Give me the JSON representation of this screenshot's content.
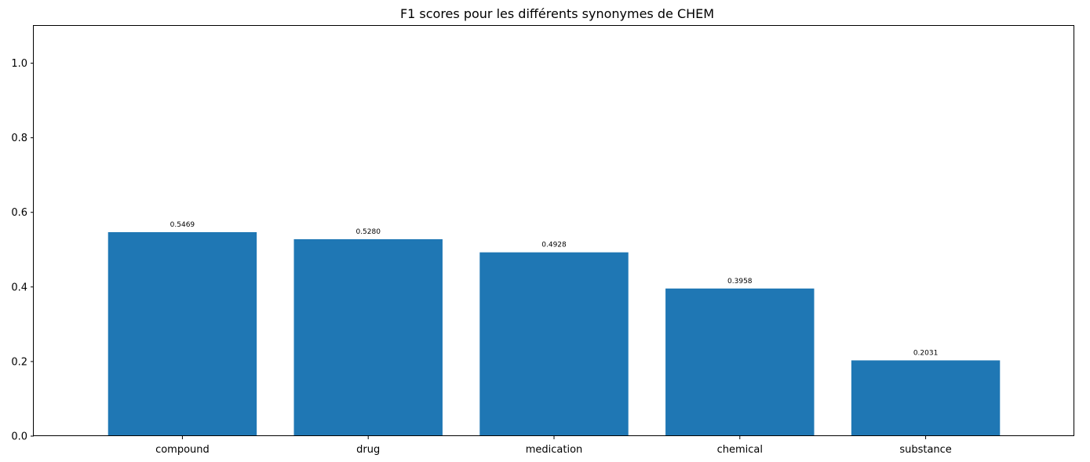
{
  "chart_data": {
    "type": "bar",
    "title": "F1 scores pour les différents synonymes de CHEM",
    "xlabel": "",
    "ylabel": "",
    "categories": [
      "compound",
      "drug",
      "medication",
      "chemical",
      "substance"
    ],
    "values": [
      0.5469,
      0.528,
      0.4928,
      0.3958,
      0.2031
    ],
    "value_labels": [
      "0.5469",
      "0.5280",
      "0.4928",
      "0.3958",
      "0.2031"
    ],
    "ylim": [
      0,
      1.1
    ],
    "yticks": [
      0.0,
      0.2,
      0.4,
      0.6,
      0.8,
      1.0
    ],
    "ytick_labels": [
      "0.0",
      "0.2",
      "0.4",
      "0.6",
      "0.8",
      "1.0"
    ],
    "grid": false,
    "bar_color": "#1f77b4"
  }
}
